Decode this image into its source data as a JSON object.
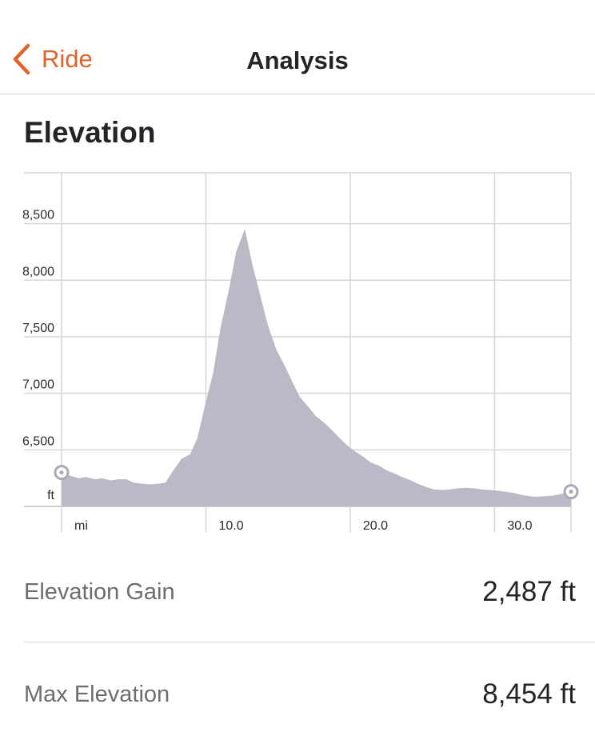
{
  "nav": {
    "back_label": "Ride",
    "title": "Analysis",
    "accent_color": "#e0642a"
  },
  "section": {
    "title": "Elevation"
  },
  "stats": [
    {
      "label": "Elevation Gain",
      "value": "2,487 ft"
    },
    {
      "label": "Max Elevation",
      "value": "8,454 ft"
    }
  ],
  "chart_data": {
    "type": "area",
    "x_unit": "mi",
    "y_unit": "ft",
    "xlim": [
      0,
      35.3
    ],
    "ylim": [
      6000,
      8950
    ],
    "x_ticks": [
      10,
      20,
      30
    ],
    "x_tick_labels": [
      "10.0",
      "20.0",
      "30.0"
    ],
    "y_ticks": [
      6500,
      7000,
      7500,
      8000,
      8500
    ],
    "y_tick_labels": [
      "6,500",
      "7,000",
      "7,500",
      "8,000",
      "8,500"
    ],
    "grid": true,
    "fill_color": "#babac6",
    "series": [
      {
        "x": [
          0,
          0.6,
          1.2,
          1.7,
          2.3,
          2.8,
          3.4,
          3.9,
          4.5,
          5.0,
          5.6,
          6.1,
          6.7,
          7.2,
          7.8,
          8.3,
          8.9,
          9.4,
          9.9,
          10.5,
          11.0,
          11.6,
          12.1,
          12.7,
          13.2,
          13.8,
          14.3,
          14.9,
          15.4,
          16.0,
          16.5,
          17.1,
          17.6,
          18.2,
          18.7,
          19.3,
          19.8,
          20.3,
          20.9,
          21.4,
          22.0,
          22.5,
          23.1,
          23.6,
          24.2,
          24.7,
          25.3,
          25.8,
          26.4,
          26.9,
          27.5,
          28.0,
          28.6,
          29.1,
          29.6,
          30.2,
          30.7,
          31.3,
          31.8,
          32.4,
          32.9,
          33.5,
          34.0,
          34.6,
          35.3
        ],
        "y": [
          6300,
          6270,
          6250,
          6260,
          6240,
          6250,
          6230,
          6240,
          6240,
          6210,
          6200,
          6195,
          6200,
          6210,
          6330,
          6420,
          6460,
          6600,
          6870,
          7180,
          7570,
          7920,
          8250,
          8454,
          8150,
          7850,
          7600,
          7380,
          7260,
          7100,
          6970,
          6880,
          6800,
          6740,
          6680,
          6600,
          6540,
          6490,
          6440,
          6390,
          6360,
          6320,
          6290,
          6260,
          6230,
          6200,
          6170,
          6150,
          6145,
          6150,
          6160,
          6165,
          6160,
          6150,
          6145,
          6140,
          6130,
          6120,
          6105,
          6090,
          6085,
          6090,
          6095,
          6110,
          6130
        ]
      }
    ]
  }
}
